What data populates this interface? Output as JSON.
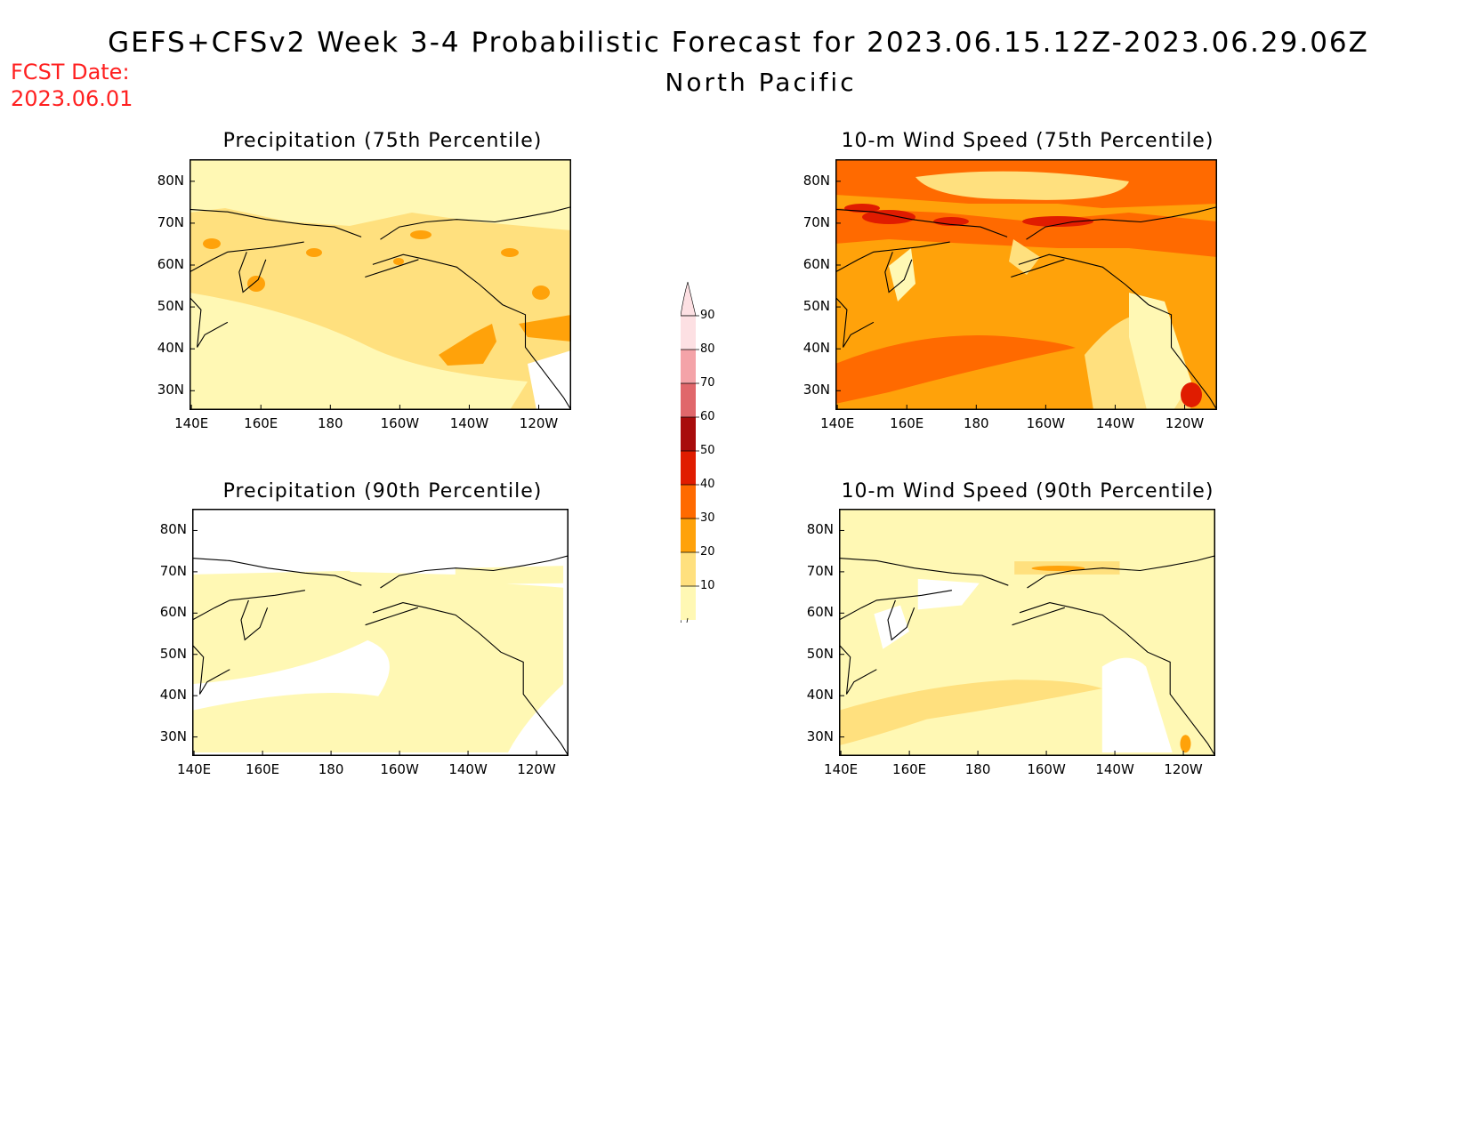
{
  "header": {
    "title": "GEFS+CFSv2 Week 3-4 Probabilistic Forecast for 2023.06.15.12Z-2023.06.29.06Z",
    "subtitle": "North Pacific",
    "fcst_label": "FCST Date:",
    "fcst_date": "2023.06.01"
  },
  "axes": {
    "lat_ticks": [
      "80N",
      "70N",
      "60N",
      "50N",
      "40N",
      "30N"
    ],
    "lon_ticks": [
      "140E",
      "160E",
      "180",
      "160W",
      "140W",
      "120W"
    ]
  },
  "panels": [
    {
      "title": "Precipitation (75th Percentile)",
      "field": "precip75"
    },
    {
      "title": "10-m Wind Speed (75th Percentile)",
      "field": "wind75"
    },
    {
      "title": "Precipitation (90th Percentile)",
      "field": "precip90"
    },
    {
      "title": "10-m Wind Speed (90th Percentile)",
      "field": "wind90"
    }
  ],
  "colorbar": {
    "labels": [
      "90",
      "80",
      "70",
      "60",
      "50",
      "40",
      "30",
      "20",
      "10"
    ],
    "colors": [
      "#fde0e3",
      "#f4a3a8",
      "#e0676b",
      "#a80c0c",
      "#e01c00",
      "#ff6a00",
      "#ffa20a",
      "#ffe07e",
      "#fff8b4"
    ]
  },
  "colors": {
    "none": "#ffffff",
    "c10": "#fff8b4",
    "c20": "#ffe07e",
    "c30": "#ffa20a",
    "c40": "#ff6a00",
    "c50": "#e01c00",
    "c60": "#a80c0c",
    "title_red": "#ff2020"
  }
}
